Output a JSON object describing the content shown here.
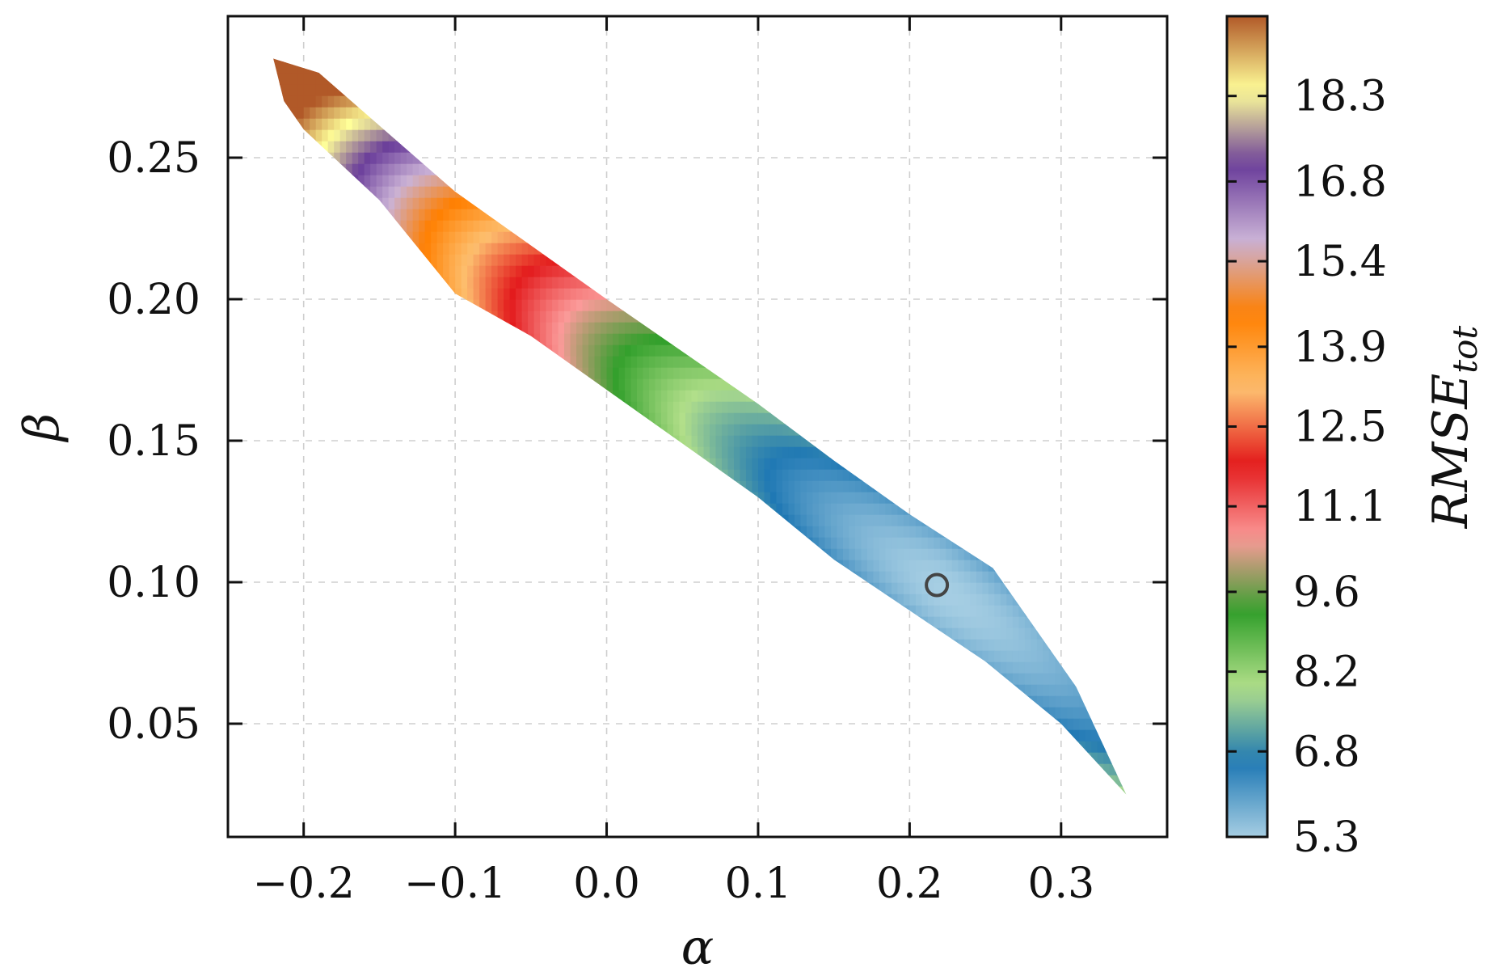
{
  "chart_data": {
    "type": "heatmap",
    "title": "",
    "xlabel": "α",
    "ylabel": "β",
    "xlim": [
      -0.25,
      0.37
    ],
    "ylim": [
      0.01,
      0.3
    ],
    "xticks": [
      -0.2,
      -0.1,
      0.0,
      0.1,
      0.2,
      0.3
    ],
    "xtick_labels": [
      "−0.2",
      "−0.1",
      "0.0",
      "0.1",
      "0.2",
      "0.3"
    ],
    "yticks": [
      0.05,
      0.1,
      0.15,
      0.2,
      0.25
    ],
    "ytick_labels": [
      "0.05",
      "0.10",
      "0.15",
      "0.20",
      "0.25"
    ],
    "grid": true,
    "colorbar": {
      "label_main": "RMSE",
      "label_sub": "tot",
      "range": [
        5.3,
        19.7
      ],
      "ticks": [
        5.3,
        6.8,
        8.2,
        9.6,
        11.1,
        12.5,
        13.9,
        15.4,
        16.8,
        18.3
      ],
      "tick_labels": [
        "5.3",
        "6.8",
        "8.2",
        "9.6",
        "11.1",
        "12.5",
        "13.9",
        "15.4",
        "16.8",
        "18.3"
      ],
      "colors": [
        "#a6cee3",
        "#1f78b4",
        "#b2df8a",
        "#33a02c",
        "#fb9a99",
        "#e31a1c",
        "#fdbf6f",
        "#ff7f00",
        "#cab2d6",
        "#6a3d9a",
        "#ffff99",
        "#b15928"
      ]
    },
    "region_boundary": [
      [
        -0.22,
        0.285
      ],
      [
        -0.19,
        0.28
      ],
      [
        -0.1,
        0.238
      ],
      [
        0.0,
        0.2
      ],
      [
        0.1,
        0.163
      ],
      [
        0.15,
        0.143
      ],
      [
        0.2,
        0.124
      ],
      [
        0.255,
        0.105
      ],
      [
        0.31,
        0.063
      ],
      [
        0.343,
        0.025
      ],
      [
        0.3,
        0.05
      ],
      [
        0.25,
        0.072
      ],
      [
        0.2,
        0.09
      ],
      [
        0.15,
        0.108
      ],
      [
        0.1,
        0.13
      ],
      [
        0.05,
        0.149
      ],
      [
        0.0,
        0.168
      ],
      [
        -0.05,
        0.187
      ],
      [
        -0.1,
        0.202
      ],
      [
        -0.15,
        0.235
      ],
      [
        -0.2,
        0.26
      ],
      [
        -0.213,
        0.27
      ]
    ],
    "optimum_marker": {
      "alpha": 0.218,
      "beta": 0.099
    }
  }
}
